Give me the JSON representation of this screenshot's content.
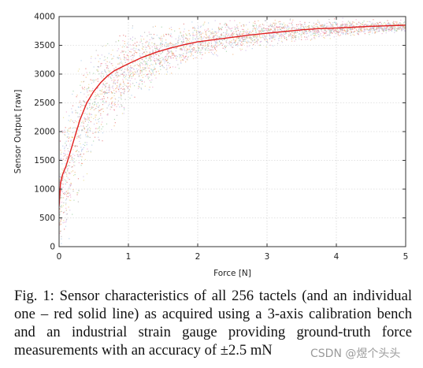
{
  "chart_data": {
    "type": "scatter",
    "xlabel": "Force [N]",
    "ylabel": "Sensor Output [raw]",
    "xlim": [
      0,
      5
    ],
    "ylim": [
      0,
      4000
    ],
    "xticks": [
      0,
      1,
      2,
      3,
      4,
      5
    ],
    "yticks": [
      0,
      500,
      1000,
      1500,
      2000,
      2500,
      3000,
      3500,
      4000
    ],
    "grid": true,
    "series": [
      {
        "role": "all-tactels",
        "style": "multicolored scatter cloud",
        "colors": [
          "#e57373",
          "#f0a0c8",
          "#9ad0a0",
          "#a6c8e8",
          "#c9b3e6",
          "#e8d88a",
          "#b0b0b0",
          "#f4b37a"
        ],
        "x": [
          0,
          0.1,
          0.2,
          0.3,
          0.5,
          0.75,
          1,
          1.5,
          2,
          2.5,
          3,
          3.5,
          4,
          4.5,
          5
        ],
        "y_low": [
          0,
          300,
          700,
          1100,
          1700,
          2200,
          2600,
          3050,
          3300,
          3450,
          3550,
          3620,
          3680,
          3720,
          3750
        ],
        "y_high": [
          1700,
          2200,
          2700,
          3000,
          3250,
          3450,
          3600,
          3750,
          3820,
          3870,
          3900,
          3910,
          3920,
          3920,
          3920
        ]
      },
      {
        "role": "individual-tactel",
        "style": "red solid line",
        "color": "#e02020",
        "x": [
          0,
          0.02,
          0.05,
          0.1,
          0.15,
          0.2,
          0.25,
          0.3,
          0.4,
          0.5,
          0.6,
          0.7,
          0.8,
          0.9,
          1,
          1.2,
          1.4,
          1.6,
          1.8,
          2,
          2.25,
          2.5,
          2.75,
          3,
          3.25,
          3.5,
          3.75,
          4,
          4.25,
          4.5,
          4.75,
          5
        ],
        "y": [
          700,
          1100,
          1250,
          1400,
          1600,
          1800,
          2000,
          2200,
          2500,
          2700,
          2850,
          2970,
          3060,
          3120,
          3180,
          3290,
          3380,
          3450,
          3510,
          3560,
          3600,
          3640,
          3680,
          3710,
          3740,
          3770,
          3790,
          3800,
          3815,
          3830,
          3840,
          3850
        ]
      }
    ]
  },
  "caption": {
    "text": "Fig. 1: Sensor characteristics of all 256 tactels (and an individual one – red solid line) as acquired using a 3-axis calibration bench and an industrial strain gauge providing ground-truth force measurements with an accuracy of ±2.5 mN"
  },
  "watermark": {
    "text": "CSDN @煜个头头"
  }
}
